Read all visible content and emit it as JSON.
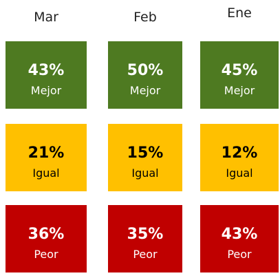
{
  "rows": [
    {
      "label": "Mejor",
      "color": "#4e7a21",
      "text_color": "#ffffff"
    },
    {
      "label": "Igual",
      "color": "#ffc000",
      "text_color": "#000000"
    },
    {
      "label": "Peor",
      "color": "#c00000",
      "text_color": "#ffffff"
    }
  ],
  "columns": [
    {
      "month": "Mar",
      "values": [
        "43%",
        "21%",
        "36%"
      ]
    },
    {
      "month": "Feb",
      "values": [
        "50%",
        "15%",
        "35%"
      ]
    },
    {
      "month": "Ene",
      "values": [
        "45%",
        "12%",
        "43%"
      ]
    }
  ]
}
